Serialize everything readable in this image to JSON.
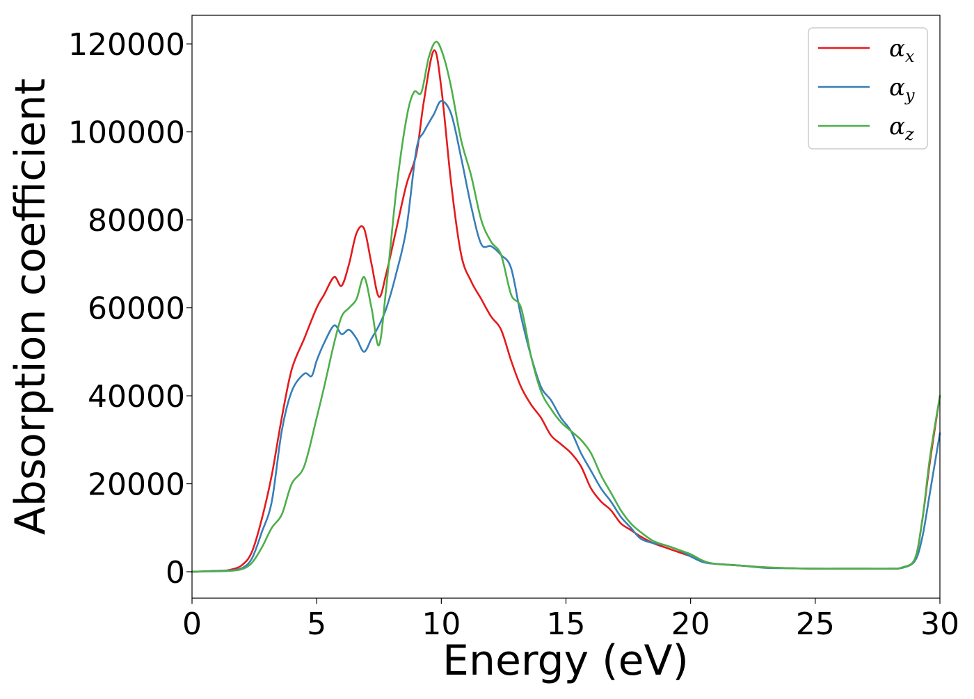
{
  "chart_data": {
    "type": "line",
    "title": "",
    "xlabel": "Energy (eV)",
    "ylabel": "Absorption coefficient",
    "xlim": [
      0,
      30
    ],
    "ylim": [
      -6000,
      126500
    ],
    "xticks": [
      0,
      5,
      10,
      15,
      20,
      25,
      30
    ],
    "yticks": [
      0,
      20000,
      40000,
      60000,
      80000,
      100000,
      120000
    ],
    "grid": false,
    "legend": "top-right",
    "series": [
      {
        "name": "αx",
        "symbol": "α",
        "subscript": "x",
        "color": "#e41a1c",
        "x": [
          0,
          1,
          1.5,
          2,
          2.4,
          2.8,
          3.2,
          3.6,
          4,
          4.5,
          5,
          5.3,
          5.7,
          6,
          6.3,
          6.6,
          6.9,
          7.2,
          7.5,
          7.8,
          8.2,
          8.6,
          9,
          9.3,
          9.7,
          10,
          10.4,
          10.8,
          11.2,
          11.6,
          12,
          12.4,
          12.8,
          13.2,
          13.6,
          14,
          14.4,
          14.8,
          15.2,
          15.6,
          16,
          16.4,
          16.8,
          17.2,
          17.6,
          18,
          18.5,
          19,
          19.5,
          20,
          20.5,
          21,
          22,
          23,
          24,
          25,
          26,
          27,
          28,
          28.5,
          29,
          29.3,
          29.6,
          30
        ],
        "y": [
          0,
          200,
          400,
          1500,
          4500,
          12000,
          22000,
          35000,
          46000,
          53000,
          60000,
          63000,
          67000,
          65000,
          70000,
          77000,
          78000,
          70000,
          62500,
          68000,
          78000,
          88000,
          95000,
          107000,
          118500,
          110000,
          88000,
          72000,
          66000,
          62000,
          58000,
          55000,
          48000,
          42000,
          38000,
          35000,
          31000,
          29000,
          27000,
          24000,
          19000,
          16000,
          14000,
          11000,
          9500,
          8000,
          6500,
          5500,
          4500,
          3500,
          2200,
          1800,
          1400,
          1000,
          800,
          700,
          700,
          700,
          700,
          1000,
          3000,
          12000,
          25000,
          40000
        ]
      },
      {
        "name": "αy",
        "symbol": "α",
        "subscript": "y",
        "color": "#377eb8",
        "x": [
          0,
          1,
          1.5,
          2,
          2.4,
          2.8,
          3.2,
          3.6,
          4,
          4.5,
          4.8,
          5,
          5.3,
          5.7,
          6,
          6.3,
          6.6,
          6.9,
          7.2,
          7.5,
          7.8,
          8.2,
          8.6,
          9,
          9.3,
          9.7,
          10,
          10.4,
          10.8,
          11.2,
          11.6,
          12,
          12.4,
          12.8,
          13.2,
          13.6,
          14,
          14.4,
          14.8,
          15.2,
          15.6,
          16,
          16.4,
          16.8,
          17.2,
          17.6,
          18,
          18.5,
          19,
          19.5,
          20,
          20.5,
          21,
          22,
          23,
          24,
          25,
          26,
          27,
          28,
          28.5,
          29,
          29.3,
          29.6,
          30
        ],
        "y": [
          0,
          200,
          300,
          800,
          3000,
          9000,
          16000,
          32000,
          41000,
          45000,
          44500,
          48000,
          52000,
          56000,
          54000,
          55000,
          53000,
          50000,
          53000,
          56000,
          60000,
          68000,
          78000,
          96000,
          100000,
          104000,
          107000,
          104000,
          94000,
          83000,
          74500,
          74000,
          72000,
          69000,
          58000,
          49000,
          42000,
          39000,
          35000,
          32000,
          27000,
          23000,
          19000,
          16000,
          12500,
          10000,
          7500,
          6500,
          6000,
          5000,
          3500,
          2200,
          1800,
          1400,
          900,
          800,
          700,
          700,
          700,
          700,
          900,
          2500,
          8000,
          18000,
          31500
        ]
      },
      {
        "name": "αz",
        "symbol": "α",
        "subscript": "z",
        "color": "#4daf4a",
        "x": [
          0,
          1,
          1.5,
          2,
          2.4,
          2.8,
          3.2,
          3.6,
          4,
          4.5,
          5,
          5.3,
          5.7,
          6,
          6.3,
          6.6,
          6.9,
          7.2,
          7.5,
          7.8,
          8.2,
          8.6,
          8.9,
          9.2,
          9.5,
          9.8,
          10.1,
          10.4,
          10.8,
          11.2,
          11.6,
          12,
          12.4,
          12.8,
          13.2,
          13.6,
          14,
          14.4,
          14.8,
          15.2,
          15.6,
          16,
          16.4,
          16.8,
          17.2,
          17.6,
          18,
          18.5,
          19,
          19.5,
          20,
          20.5,
          21,
          22,
          23,
          24,
          25,
          26,
          27,
          28,
          28.5,
          29,
          29.3,
          29.6,
          30
        ],
        "y": [
          0,
          100,
          200,
          600,
          2000,
          5500,
          10000,
          13000,
          20000,
          24000,
          35000,
          42000,
          52000,
          58000,
          60000,
          62000,
          67000,
          60000,
          51500,
          65000,
          87000,
          103000,
          109000,
          109000,
          117000,
          120500,
          117000,
          110000,
          98000,
          90000,
          80000,
          75000,
          72000,
          63000,
          60000,
          49000,
          41000,
          37000,
          34000,
          32000,
          30000,
          27000,
          22000,
          18000,
          14000,
          11000,
          9000,
          7000,
          6000,
          5000,
          4000,
          2500,
          1800,
          1400,
          1000,
          800,
          700,
          700,
          700,
          700,
          1000,
          3000,
          12000,
          26000,
          40000
        ]
      }
    ]
  }
}
